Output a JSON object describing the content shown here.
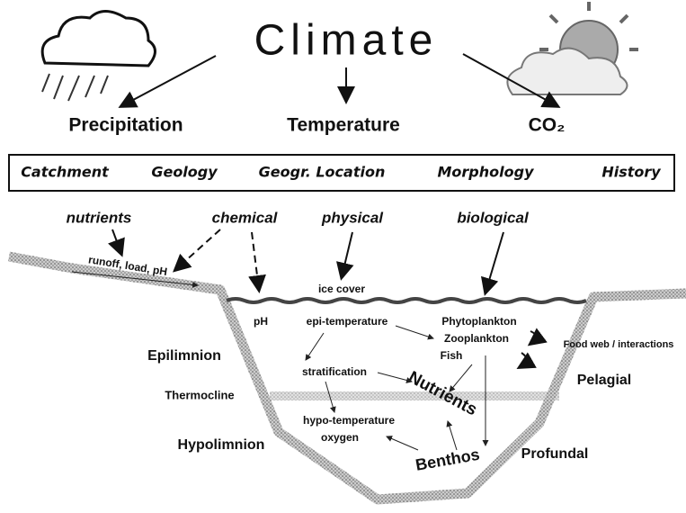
{
  "title": "Climate",
  "factors": [
    "Precipitation",
    "Temperature",
    "CO₂"
  ],
  "context": [
    "Catchment",
    "Geology",
    "Geogr. Location",
    "Morphology",
    "History"
  ],
  "influences": [
    "nutrients",
    "chemical",
    "physical",
    "biological"
  ],
  "inputs": {
    "runoff": "runoff, load, pH",
    "ice": "ice cover",
    "ph": "pH"
  },
  "processes": {
    "epi": "epi-temperature",
    "strat": "stratification",
    "hypo": [
      "hypo-temperature",
      "oxygen"
    ],
    "biota": [
      "Phytoplankton",
      "Zooplankton",
      "Fish"
    ],
    "foodweb": "Food web / interactions",
    "nutrients": "Nutrients",
    "benthos": "Benthos"
  },
  "zones": [
    "Epilimnion",
    "Thermocline",
    "Hypolimnion",
    "Pelagial",
    "Profundal"
  ]
}
